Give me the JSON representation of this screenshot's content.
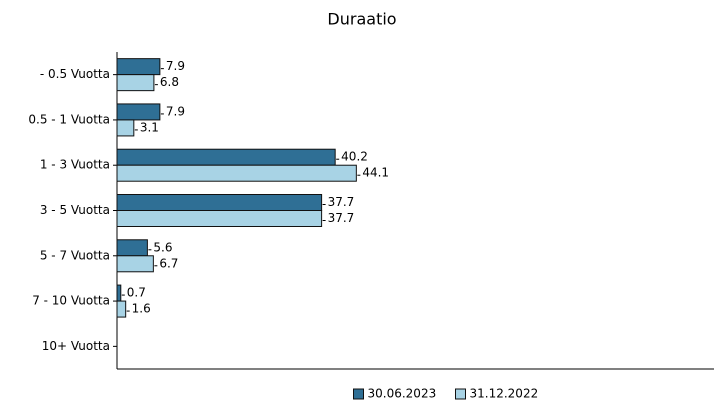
{
  "chart_data": {
    "type": "hbar",
    "title": "Duraatio",
    "categories": [
      "- 0.5 Vuotta",
      "0.5 - 1 Vuotta",
      "1 - 3 Vuotta",
      "3 - 5 Vuotta",
      "5 - 7 Vuotta",
      "7 - 10 Vuotta",
      "10+ Vuotta"
    ],
    "series": [
      {
        "name": "30.06.2023",
        "color": "#2f6f95",
        "values": [
          7.9,
          7.9,
          40.2,
          37.7,
          5.6,
          0.7,
          null
        ]
      },
      {
        "name": "31.12.2022",
        "color": "#a8d3e5",
        "values": [
          6.8,
          3.1,
          44.1,
          37.7,
          6.7,
          1.6,
          null
        ]
      }
    ],
    "xlim": [
      0,
      110
    ],
    "legend": "bottom"
  }
}
